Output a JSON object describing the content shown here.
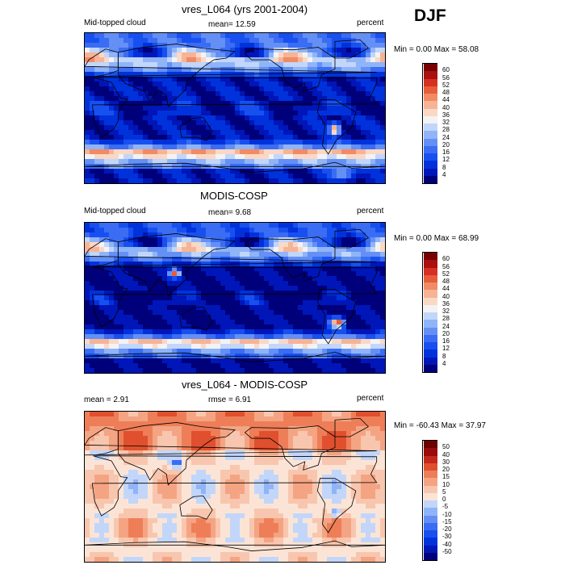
{
  "season": "DJF",
  "panels": [
    {
      "title": "vres_L064 (yrs 2001-2004)",
      "left_label": "Mid-topped cloud",
      "center_label": "mean=  12.59",
      "right_label": "percent",
      "minmax": "Min =    0.00 Max =   58.08",
      "scale": "abs"
    },
    {
      "title": "MODIS-COSP",
      "left_label": "Mid-topped cloud",
      "center_label": "mean=    9.68",
      "right_label": "percent",
      "minmax": "Min =    0.00 Max =   68.99",
      "scale": "abs"
    },
    {
      "title": "vres_L064 - MODIS-COSP",
      "left_label": "mean =    2.91",
      "center_label": "rmse =    6.91",
      "right_label": "percent",
      "minmax": "Min = -60.43 Max =   37.97",
      "scale": "diff"
    }
  ],
  "chart_data": [
    {
      "type": "heatmap",
      "title": "vres_L064 (yrs 2001-2004)",
      "variable": "Mid-topped cloud",
      "units": "percent",
      "mean": 12.59,
      "min": 0.0,
      "max": 58.08,
      "levels": [
        4,
        8,
        12,
        16,
        20,
        24,
        28,
        32,
        36,
        40,
        44,
        48,
        52,
        56,
        60
      ],
      "colors": [
        "#00007a",
        "#0016b8",
        "#0032dc",
        "#1850f0",
        "#3a6cf4",
        "#6490f6",
        "#90b4f8",
        "#c2d6fa",
        "#f3f3f3",
        "#fad8c6",
        "#f6b496",
        "#f28a64",
        "#e85c3a",
        "#d63020",
        "#ac0f0f",
        "#780000"
      ]
    },
    {
      "type": "heatmap",
      "title": "MODIS-COSP",
      "variable": "Mid-topped cloud",
      "units": "percent",
      "mean": 9.68,
      "min": 0.0,
      "max": 68.99,
      "levels": [
        4,
        8,
        12,
        16,
        20,
        24,
        28,
        32,
        36,
        40,
        44,
        48,
        52,
        56,
        60
      ],
      "colors": [
        "#00007a",
        "#0016b8",
        "#0032dc",
        "#1850f0",
        "#3a6cf4",
        "#6490f6",
        "#90b4f8",
        "#c2d6fa",
        "#f3f3f3",
        "#fad8c6",
        "#f6b496",
        "#f28a64",
        "#e85c3a",
        "#d63020",
        "#ac0f0f",
        "#780000"
      ]
    },
    {
      "type": "heatmap",
      "title": "vres_L064 - MODIS-COSP",
      "units": "percent",
      "mean": 2.91,
      "rmse": 6.91,
      "min": -60.43,
      "max": 37.97,
      "levels": [
        -50,
        -40,
        -30,
        -20,
        -15,
        -10,
        -5,
        0,
        5,
        10,
        15,
        20,
        30,
        40,
        50
      ],
      "colors": [
        "#00007a",
        "#0016b8",
        "#0032dc",
        "#1850f0",
        "#3a6cf4",
        "#6490f6",
        "#90b4f8",
        "#c2d6fa",
        "#fbe4d6",
        "#f8c6ae",
        "#f4a482",
        "#ee7e58",
        "#e0502e",
        "#c4281a",
        "#9a0c0c",
        "#6e0000"
      ]
    }
  ]
}
